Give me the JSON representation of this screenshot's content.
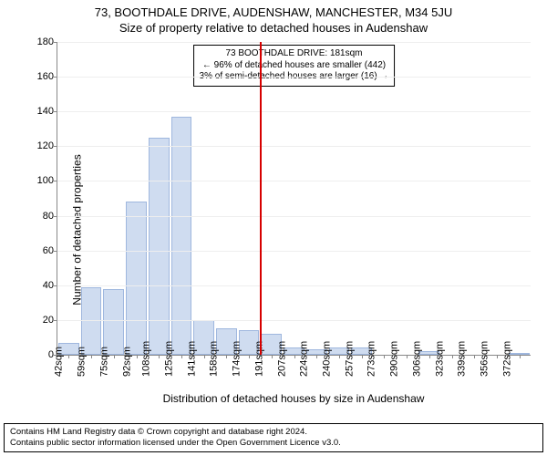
{
  "title": "73, BOOTHDALE DRIVE, AUDENSHAW, MANCHESTER, M34 5JU",
  "subtitle": "Size of property relative to detached houses in Audenshaw",
  "chart": {
    "type": "histogram",
    "ylabel": "Number of detached properties",
    "xlabel": "Distribution of detached houses by size in Audenshaw",
    "ylim_max": 180,
    "ytick_step": 20,
    "yticks": [
      0,
      20,
      40,
      60,
      80,
      100,
      120,
      140,
      160,
      180
    ],
    "xtick_labels": [
      "42sqm",
      "59sqm",
      "75sqm",
      "92sqm",
      "108sqm",
      "125sqm",
      "141sqm",
      "158sqm",
      "174sqm",
      "191sqm",
      "207sqm",
      "224sqm",
      "240sqm",
      "257sqm",
      "273sqm",
      "290sqm",
      "306sqm",
      "323sqm",
      "339sqm",
      "356sqm",
      "372sqm"
    ],
    "values": [
      7,
      39,
      38,
      88,
      125,
      137,
      20,
      15,
      14,
      12,
      4,
      3,
      4,
      4,
      0,
      0,
      2,
      0,
      0,
      0,
      1
    ],
    "bar_fill": "#cfdcf0",
    "bar_stroke": "#9fb7de",
    "grid_color": "#eeeeee",
    "axis_color": "#888888",
    "background_color": "#ffffff",
    "label_fontsize": 12,
    "tick_fontsize": 11,
    "title_fontsize": 13,
    "reference": {
      "index_position": 9,
      "color": "#d60000",
      "line_width": 2
    },
    "annotation": {
      "lines": [
        "73 BOOTHDALE DRIVE: 181sqm",
        "← 96% of detached houses are smaller (442)",
        "3% of semi-detached houses are larger (16) →"
      ],
      "border_color": "#000000",
      "background_color": "#ffffff",
      "fontsize": 10
    }
  },
  "footer": {
    "line1": "Contains HM Land Registry data © Crown copyright and database right 2024.",
    "line2": "Contains public sector information licensed under the Open Government Licence v3.0.",
    "border_color": "#000000",
    "fontsize": 9.5
  }
}
